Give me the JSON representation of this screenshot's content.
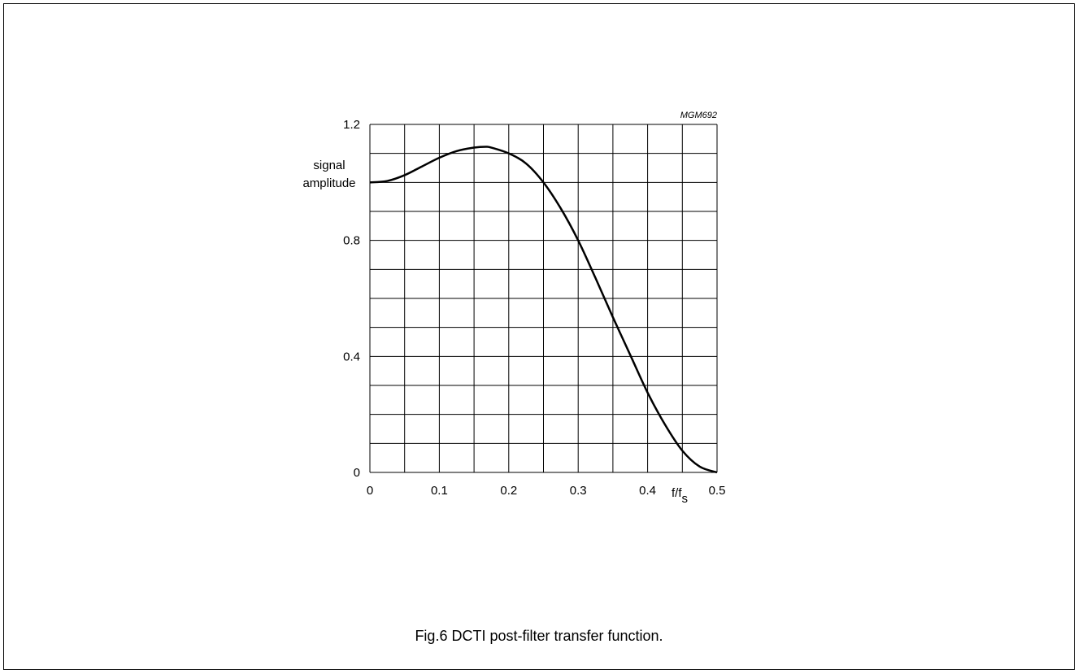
{
  "caption": "Fig.6  DCTI post-filter transfer function.",
  "figure_code": "MGM692",
  "chart_data": {
    "type": "line",
    "ylabel_lines": [
      "signal",
      "amplitude"
    ],
    "xlabel_main": "f/f",
    "xlabel_sub": "s",
    "xlim": [
      0,
      0.5
    ],
    "ylim": [
      0,
      1.2
    ],
    "x_ticks": [
      "0",
      "0.1",
      "0.2",
      "0.3",
      "0.4",
      "0.5"
    ],
    "y_ticks": [
      "0",
      "0.4",
      "0.8",
      "1.2"
    ],
    "grid": true,
    "series": [
      {
        "x": [
          0,
          0.025,
          0.05,
          0.075,
          0.1,
          0.125,
          0.15,
          0.167,
          0.175,
          0.2,
          0.225,
          0.25,
          0.275,
          0.3,
          0.325,
          0.35,
          0.375,
          0.4,
          0.425,
          0.45,
          0.475,
          0.5
        ],
        "y": [
          1.0,
          1.005,
          1.025,
          1.055,
          1.085,
          1.108,
          1.12,
          1.123,
          1.12,
          1.1,
          1.065,
          1.0,
          0.91,
          0.8,
          0.67,
          0.535,
          0.405,
          0.275,
          0.165,
          0.075,
          0.02,
          0.0
        ]
      }
    ]
  }
}
